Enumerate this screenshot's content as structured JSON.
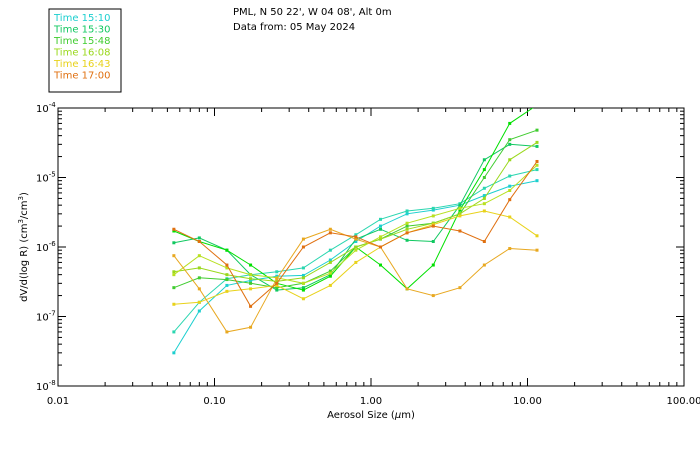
{
  "chart_data": {
    "type": "line",
    "header": {
      "location": "PML, N 50 22', W 04 08', Alt 0m",
      "date": "Data from: 05 May 2024"
    },
    "xlabel_prefix": "Aerosol Size (",
    "xlabel_mu": "μ",
    "xlabel_suffix": "m)",
    "ylabel_prefix": "dV/d(log R) (cm",
    "ylabel_mid": "/cm",
    "ylabel_suffix": ")",
    "ylabel_exp": "3",
    "x_scale": "log",
    "y_scale": "log",
    "xlim": [
      0.01,
      100
    ],
    "ylim": [
      1e-08,
      0.0001
    ],
    "x_ticks": [
      {
        "value": 0.01,
        "label": "0.01"
      },
      {
        "value": 0.1,
        "label": "0.10"
      },
      {
        "value": 1,
        "label": "1.00"
      },
      {
        "value": 10,
        "label": "10.00"
      },
      {
        "value": 100,
        "label": "100.00"
      }
    ],
    "y_ticks": [
      {
        "value": 1e-08,
        "base": "10",
        "exp": "-8"
      },
      {
        "value": 1e-07,
        "base": "10",
        "exp": "-7"
      },
      {
        "value": 1e-06,
        "base": "10",
        "exp": "-6"
      },
      {
        "value": 1e-05,
        "base": "10",
        "exp": "-5"
      },
      {
        "value": 0.0001,
        "base": "10",
        "exp": "-4"
      }
    ],
    "x": [
      0.055,
      0.08,
      0.12,
      0.17,
      0.25,
      0.37,
      0.55,
      0.8,
      1.15,
      1.7,
      2.5,
      3.7,
      5.3,
      7.7,
      11.5
    ],
    "series": [
      {
        "name": "Time 15:10",
        "color": "#1ccfcf",
        "values": [
          3e-08,
          1.2e-07,
          2.8e-07,
          3.3e-07,
          3.8e-07,
          3.9e-07,
          6.5e-07,
          1.2e-06,
          2e-06,
          3e-06,
          3.4e-06,
          4e-06,
          5.5e-06,
          7.5e-06,
          9e-06
        ]
      },
      {
        "name": "Time 15:10",
        "color": "#2ad6b0",
        "values": [
          6e-08,
          1.6e-07,
          3.5e-07,
          4e-07,
          4.4e-07,
          5e-07,
          9e-07,
          1.5e-06,
          2.5e-06,
          3.3e-06,
          3.6e-06,
          4.2e-06,
          7e-06,
          1.05e-05,
          1.3e-05
        ]
      },
      {
        "name": "Time 15:30",
        "color": "#10c860",
        "values": [
          1.15e-06,
          1.35e-06,
          9e-07,
          4e-07,
          2.4e-07,
          2.6e-07,
          4e-07,
          1.3e-06,
          1.8e-06,
          1.25e-06,
          1.2e-06,
          4e-06,
          1.8e-05,
          3e-05,
          2.8e-05
        ]
      },
      {
        "name": "Time 15:30",
        "color": "#00e000",
        "values": [
          1.7e-06,
          1.2e-06,
          9e-07,
          5.5e-07,
          3e-07,
          2.4e-07,
          3.8e-07,
          1e-06,
          5.5e-07,
          2.5e-07,
          5.5e-07,
          3.4e-06,
          1.3e-05,
          6e-05,
          0.00011
        ]
      },
      {
        "name": "Time 15:48",
        "color": "#40cc30",
        "values": [
          2.6e-07,
          3.6e-07,
          3.4e-07,
          3e-07,
          2.6e-07,
          3e-07,
          4.5e-07,
          1e-06,
          1.3e-06,
          2e-06,
          2.2e-06,
          3e-06,
          1e-05,
          3.5e-05,
          4.8e-05
        ]
      },
      {
        "name": "Time 16:08",
        "color": "#9ad81c",
        "values": [
          4.4e-07,
          5e-07,
          4e-07,
          3.5e-07,
          3.2e-07,
          3.6e-07,
          6e-07,
          1e-06,
          1.3e-06,
          1.8e-06,
          2.2e-06,
          3e-06,
          5e-06,
          1.8e-05,
          3.2e-05
        ]
      },
      {
        "name": "Time 16:08",
        "color": "#b8e020",
        "values": [
          4e-07,
          7.5e-07,
          5e-07,
          4e-07,
          3.6e-07,
          3e-07,
          4.2e-07,
          9e-07,
          1.4e-06,
          2.2e-06,
          2.8e-06,
          3.6e-06,
          4.2e-06,
          6.5e-06,
          1.5e-05
        ]
      },
      {
        "name": "Time 16:43",
        "color": "#e8d21a",
        "values": [
          1.5e-07,
          1.6e-07,
          2.3e-07,
          2.5e-07,
          2.8e-07,
          1.8e-07,
          2.8e-07,
          6e-07,
          1e-06,
          1.6e-06,
          2.1e-06,
          2.8e-06,
          3.3e-06,
          2.7e-06,
          1.45e-06
        ]
      },
      {
        "name": "Time 16:43",
        "color": "#e8a820",
        "values": [
          7.5e-07,
          2.5e-07,
          6e-08,
          7e-08,
          3.5e-07,
          1.3e-06,
          1.8e-06,
          1.3e-06,
          1e-06,
          2.5e-07,
          2e-07,
          2.6e-07,
          5.5e-07,
          9.5e-07,
          9e-07
        ]
      },
      {
        "name": "Time 17:00",
        "color": "#e07010",
        "values": [
          1.8e-06,
          1.2e-06,
          5.5e-07,
          1.4e-07,
          3e-07,
          1e-06,
          1.6e-06,
          1.4e-06,
          1e-06,
          1.6e-06,
          2e-06,
          1.7e-06,
          1.2e-06,
          4.8e-06,
          1.7e-05
        ]
      }
    ],
    "legend": [
      {
        "label": "Time 15:10",
        "color": "#1ccfcf"
      },
      {
        "label": "Time 15:30",
        "color": "#10c860"
      },
      {
        "label": "Time 15:48",
        "color": "#40cc30"
      },
      {
        "label": "Time 16:08",
        "color": "#9ad81c"
      },
      {
        "label": "Time 16:43",
        "color": "#e8d21a"
      },
      {
        "label": "Time 17:00",
        "color": "#e07010"
      }
    ],
    "legend_placement": "top-left",
    "grid": false
  }
}
